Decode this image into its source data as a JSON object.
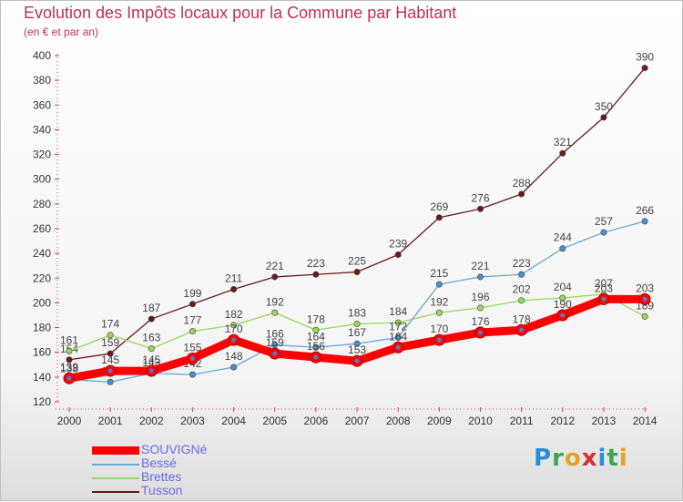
{
  "header": {
    "title": "Evolution des Impôts locaux pour la Commune par Habitant",
    "subtitle": "(en € et par an)"
  },
  "brand": {
    "letters": [
      "P",
      "r",
      "o",
      "x",
      "i",
      "t",
      "i"
    ],
    "colors": [
      "#2a8fd8",
      "#3aa84a",
      "#e8a020",
      "#d83030",
      "#2a8fd8",
      "#3aa84a",
      "#e8a020"
    ]
  },
  "chart_data": {
    "type": "line",
    "title": "Evolution des Impôts locaux pour la Commune par Habitant",
    "subtitle": "(en € et par an)",
    "xlabel": "",
    "ylabel": "",
    "x": [
      "2000",
      "2001",
      "2002",
      "2003",
      "2004",
      "2005",
      "2006",
      "2007",
      "2008",
      "2009",
      "2010",
      "2011",
      "2012",
      "2013",
      "2014"
    ],
    "ylim": [
      120,
      400
    ],
    "yticks": [
      120,
      140,
      160,
      180,
      200,
      220,
      240,
      260,
      280,
      300,
      320,
      340,
      360,
      380,
      400
    ],
    "grid": false,
    "legend_position": "bottom-left",
    "series": [
      {
        "name": "Tusson",
        "color": "#6b1a1a",
        "marker": "#6b1a1a",
        "emphasis": false,
        "values": [
          154,
          159,
          187,
          199,
          211,
          221,
          223,
          225,
          239,
          269,
          276,
          288,
          321,
          350,
          390
        ]
      },
      {
        "name": "Brettes",
        "color": "#99d85a",
        "marker": "#99d85a",
        "emphasis": false,
        "values": [
          161,
          174,
          163,
          177,
          182,
          192,
          178,
          183,
          184,
          192,
          196,
          202,
          204,
          207,
          189
        ]
      },
      {
        "name": "Bessé",
        "color": "#6aa8d8",
        "marker": "#4a90d0",
        "emphasis": false,
        "values": [
          138,
          136,
          143,
          142,
          148,
          166,
          164,
          167,
          172,
          215,
          221,
          223,
          244,
          257,
          266
        ]
      },
      {
        "name": "SOUVIGNé",
        "color": "#ff0000",
        "marker": "#ff0000",
        "emphasis": true,
        "values": [
          139,
          145,
          145,
          155,
          170,
          159,
          156,
          153,
          164,
          170,
          176,
          178,
          190,
          203,
          203
        ]
      }
    ]
  }
}
